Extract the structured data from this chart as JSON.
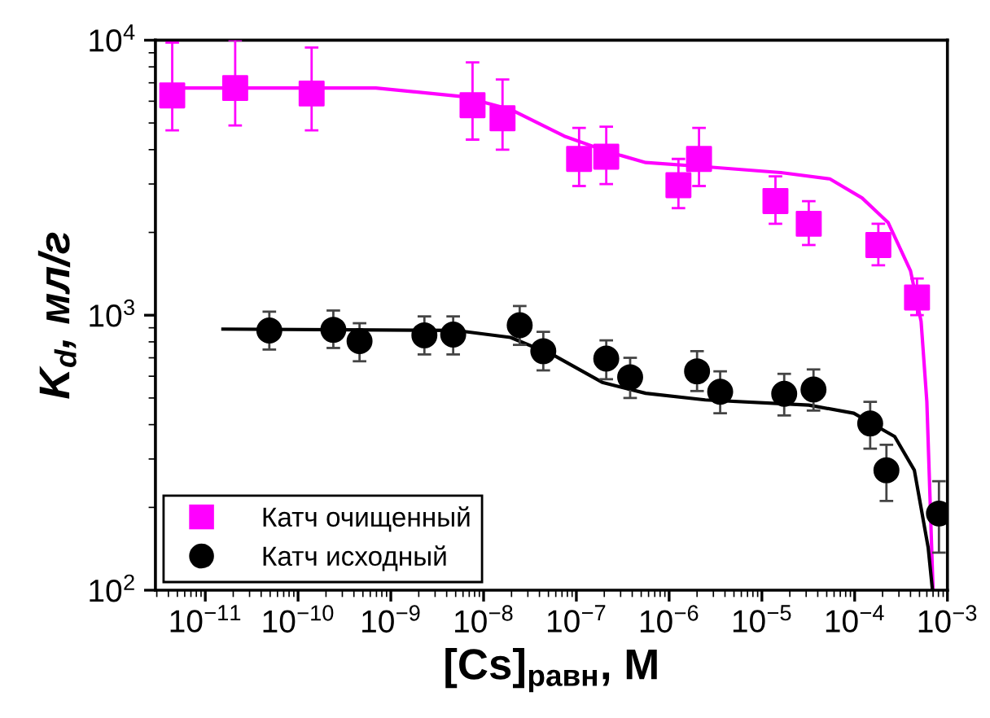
{
  "chart_data": {
    "type": "scatter",
    "xlabel": "[Cs]$_{равн}$, М",
    "ylabel": "K$_{d}$, мл/г",
    "log": "xy",
    "grid": false,
    "legend": "bottom left",
    "xlim": [
      2.9e-12,
      0.001
    ],
    "ylim": [
      100,
      10000
    ],
    "xticks": [
      {
        "value": 1e-11,
        "label": "10$^{−11}$"
      },
      {
        "value": 1e-10,
        "label": "10$^{−10}$"
      },
      {
        "value": 1e-09,
        "label": "10$^{−9}$"
      },
      {
        "value": 1e-08,
        "label": "10$^{−8}$"
      },
      {
        "value": 1e-07,
        "label": "10$^{−7}$"
      },
      {
        "value": 1e-06,
        "label": "10$^{−6}$"
      },
      {
        "value": 1e-05,
        "label": "10$^{−5}$"
      },
      {
        "value": 0.0001,
        "label": "10$^{−4}$"
      },
      {
        "value": 0.001,
        "label": "10$^{−3}$"
      }
    ],
    "yticks": [
      {
        "value": 100,
        "label": "10$^{2}$"
      },
      {
        "value": 1000,
        "label": "10$^{3}$"
      },
      {
        "value": 10000,
        "label": "10$^{4}$"
      }
    ],
    "series": [
      {
        "type": "line",
        "color": "#ff00ff",
        "x": [
          3.6e-12,
          6.9e-10,
          5.9e-09,
          1.95e-08,
          7.4e-08,
          2.2e-07,
          5.6e-07,
          2.1e-06,
          1.6e-05,
          5.4e-05,
          0.00012,
          0.00023,
          0.0004,
          0.00052,
          0.0006,
          0.0007
        ],
        "values": [
          6700,
          6700,
          6240,
          5600,
          4480,
          3930,
          3590,
          3480,
          3300,
          3130,
          2670,
          2170,
          1450,
          950,
          485,
          100
        ]
      },
      {
        "type": "line",
        "color": "#000000",
        "x": [
          1.55e-11,
          5.1e-09,
          1.95e-08,
          5.7e-08,
          1.9e-07,
          5.6e-07,
          2.45e-06,
          3.2e-05,
          9.8e-05,
          0.00027,
          0.00044,
          0.00062,
          0.00069
        ],
        "values": [
          890,
          880,
          830,
          715,
          570,
          520,
          492,
          471,
          440,
          362,
          273,
          143,
          100
        ]
      },
      {
        "name": "Катч очищенный",
        "color": "#ff00ff",
        "marker": "square",
        "x": [
          4.4e-12,
          2.1e-11,
          1.4e-10,
          7.6e-09,
          1.6e-08,
          1.07e-07,
          2.1e-07,
          1.26e-06,
          2.1e-06,
          1.4e-05,
          3.2e-05,
          0.00018,
          0.00047
        ],
        "values": [
          6300,
          6700,
          6400,
          5800,
          5200,
          3700,
          3770,
          2970,
          3700,
          2600,
          2150,
          1800,
          1160
        ],
        "errors": [
          [
            4700,
            9800
          ],
          [
            4900,
            10000
          ],
          [
            4700,
            9400
          ],
          [
            4350,
            8300
          ],
          [
            4000,
            7200
          ],
          [
            2950,
            4800
          ],
          [
            3000,
            4850
          ],
          [
            2450,
            3700
          ],
          [
            2950,
            4800
          ],
          [
            2150,
            3200
          ],
          [
            1800,
            2600
          ],
          [
            1520,
            2150
          ],
          [
            1000,
            1360
          ]
        ]
      },
      {
        "name": "Катч исходный",
        "color": "#000000",
        "marker": "circle",
        "x": [
          4.9e-11,
          2.4e-10,
          4.6e-10,
          2.3e-09,
          4.7e-09,
          2.45e-08,
          4.4e-08,
          2.1e-07,
          3.8e-07,
          2e-06,
          3.55e-06,
          1.74e-05,
          3.6e-05,
          0.000147,
          0.00022,
          0.00081
        ],
        "values": [
          880,
          885,
          805,
          845,
          850,
          920,
          740,
          695,
          595,
          625,
          527,
          518,
          537,
          404,
          273,
          190
        ],
        "errors": [
          [
            750,
            1030
          ],
          [
            760,
            1040
          ],
          [
            680,
            935
          ],
          [
            720,
            990
          ],
          [
            720,
            990
          ],
          [
            780,
            1080
          ],
          [
            630,
            870
          ],
          [
            585,
            810
          ],
          [
            500,
            700
          ],
          [
            530,
            740
          ],
          [
            440,
            625
          ],
          [
            432,
            612
          ],
          [
            450,
            635
          ],
          [
            327,
            484
          ],
          [
            211,
            338
          ],
          [
            137,
            249
          ]
        ]
      }
    ]
  }
}
